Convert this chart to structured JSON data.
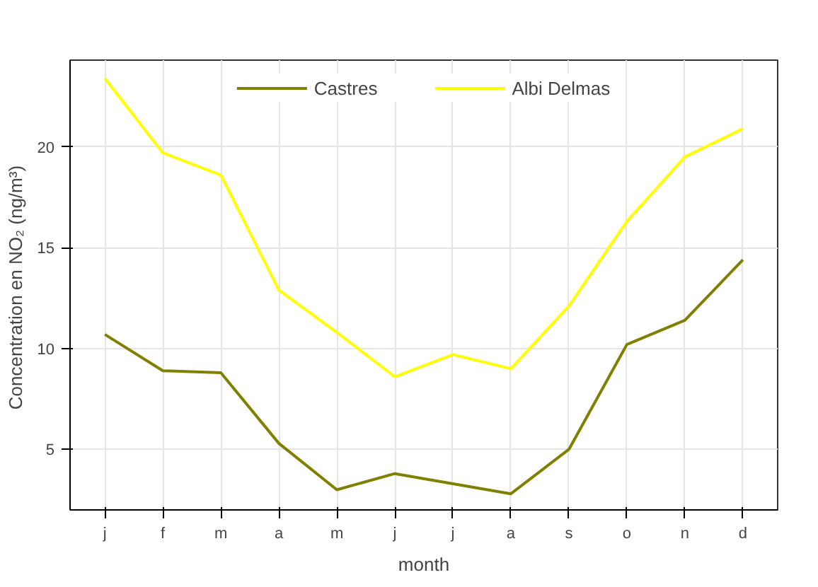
{
  "chart_data": {
    "type": "line",
    "xlabel": "month",
    "ylabel": "Concentration en  NO₂ (ng/m³)",
    "categories": [
      "j",
      "f",
      "m",
      "a",
      "m",
      "j",
      "j",
      "a",
      "s",
      "o",
      "n",
      "d"
    ],
    "series": [
      {
        "name": "Castres",
        "color": "#808000",
        "values": [
          10.7,
          8.9,
          8.8,
          5.3,
          3.0,
          3.8,
          3.3,
          2.8,
          5.0,
          10.2,
          11.4,
          14.4
        ]
      },
      {
        "name": "Albi Delmas",
        "color": "#ffff00",
        "values": [
          23.4,
          19.7,
          18.6,
          12.9,
          10.8,
          8.6,
          9.7,
          9.0,
          12.1,
          16.3,
          19.5,
          20.9
        ]
      }
    ],
    "ylim": [
      2.0,
      24.3
    ],
    "yticks": [
      5,
      10,
      15,
      20
    ],
    "grid": true,
    "legend": "top",
    "line_style": "solid",
    "marker": "none"
  }
}
